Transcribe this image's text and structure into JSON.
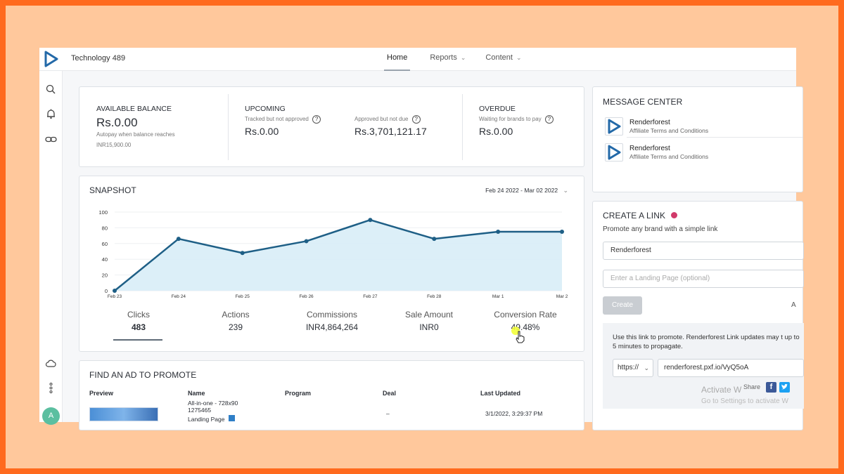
{
  "header": {
    "app_title": "Technology 489",
    "nav": [
      {
        "label": "Home",
        "active": true
      },
      {
        "label": "Reports",
        "chevron": "⌄"
      },
      {
        "label": "Content",
        "chevron": "⌄"
      }
    ]
  },
  "sidebar": {
    "icons": [
      "search-icon",
      "bell-icon",
      "link-icon",
      "cloud-icon",
      "more-vertical-icon"
    ],
    "avatar_initial": "A"
  },
  "balance": {
    "available_label": "AVAILABLE BALANCE",
    "available_value": "Rs.0.00",
    "autopay_text": "Autopay when balance reaches",
    "autopay_amount": "INR15,900.00",
    "upcoming_label": "UPCOMING",
    "tracked_label": "Tracked but not approved",
    "tracked_value": "Rs.0.00",
    "approved_label": "Approved but not due",
    "approved_value": "Rs.3,701,121.17",
    "overdue_label": "OVERDUE",
    "overdue_sub": "Waiting for brands to pay",
    "overdue_value": "Rs.0.00",
    "help_glyph": "?"
  },
  "snapshot": {
    "title": "SNAPSHOT",
    "date_range": "Feb 24 2022 - Mar 02 2022",
    "date_chevron": "⌄",
    "metrics": [
      {
        "label": "Clicks",
        "value": "483"
      },
      {
        "label": "Actions",
        "value": "239"
      },
      {
        "label": "Commissions",
        "value": "INR4,864,264"
      },
      {
        "label": "Sale Amount",
        "value": "INR0"
      },
      {
        "label": "Conversion Rate",
        "value": "49.48%"
      }
    ]
  },
  "chart_data": {
    "type": "area",
    "categories": [
      "Feb 23",
      "Feb 24",
      "Feb 25",
      "Feb 26",
      "Feb 27",
      "Feb 28",
      "Mar 1",
      "Mar 2"
    ],
    "values": [
      0,
      66,
      48,
      63,
      90,
      66,
      75,
      75
    ],
    "yticks": [
      "0",
      "20",
      "40",
      "60",
      "80",
      "100"
    ],
    "ylim": [
      0,
      100
    ],
    "line_color": "#1e5f86",
    "fill_color": "#d8edf7",
    "grid": true
  },
  "find_ad": {
    "title": "FIND AN AD TO PROMOTE",
    "columns": [
      "Preview",
      "Name",
      "Program",
      "Deal",
      "Last Updated"
    ],
    "row": {
      "name": "All-in-one - 728x90",
      "id": "1275465",
      "landing": "Landing Page",
      "deal": "–",
      "updated": "3/1/2022, 3:29:37 PM"
    }
  },
  "message_center": {
    "title": "MESSAGE CENTER",
    "messages": [
      {
        "name": "Renderforest",
        "subject": "Affiliate Terms and Conditions"
      },
      {
        "name": "Renderforest",
        "subject": "Affiliate Terms and Conditions"
      }
    ]
  },
  "create_link": {
    "title": "CREATE A LINK",
    "subtitle": "Promote any brand with a simple link",
    "brand_value": "Renderforest",
    "landing_placeholder": "Enter a Landing Page (optional)",
    "create_label": "Create",
    "side_letter": "A",
    "promo_text": "Use this link to promote. Renderforest Link updates may t up to 5 minutes to propagate.",
    "protocol": "https://",
    "link_value": "renderforest.pxf.io/VyQ5oA",
    "share_label": "Share",
    "activate_title": "Activate W",
    "activate_sub": "Go to Settings to activate W",
    "accent": "#1e5f86",
    "brand_colors": {
      "facebook": "#3b5998",
      "twitter": "#1da1f2"
    }
  }
}
